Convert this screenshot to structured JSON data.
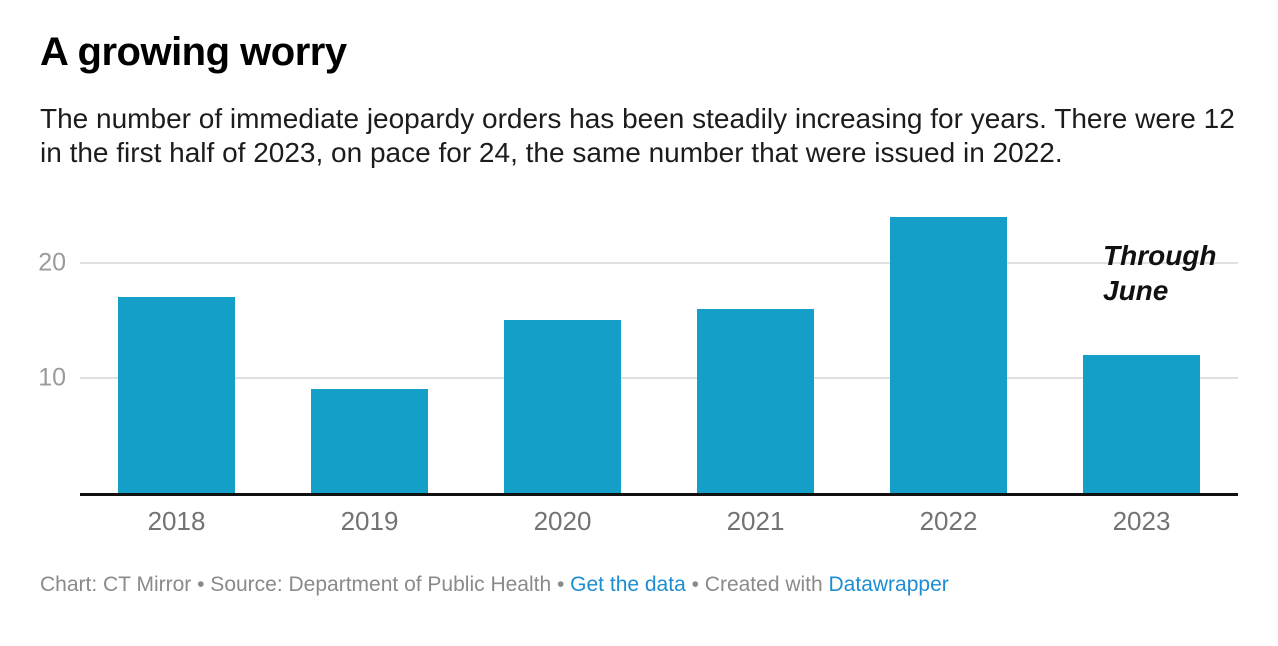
{
  "header": {
    "title": "A growing worry",
    "description_lines": [
      "The number of immediate jeopardy orders has been steadily increasing for years. There were 12",
      "in the first half of 2023, on pace for 24, the same number that were issued in 2022."
    ]
  },
  "chart_data": {
    "type": "bar",
    "categories": [
      "2018",
      "2019",
      "2020",
      "2021",
      "2022",
      "2023"
    ],
    "values": [
      17,
      9,
      15,
      16,
      24,
      12
    ],
    "title": "A growing worry",
    "xlabel": "",
    "ylabel": "",
    "ylim": [
      0,
      25
    ],
    "yticks": [
      10,
      20
    ],
    "grid": "horizontal",
    "legend": "none",
    "bar_color": "#149FC9",
    "axis_line_color": "#111111",
    "gridline_color": "#e0e0e0",
    "annotation": {
      "lines": [
        "Through",
        "June"
      ],
      "target_category": "2023"
    }
  },
  "footer": {
    "credit_prefix": "Chart: CT Mirror • Source: Department of Public Health • ",
    "get_data_label": "Get the data",
    "created_with": " • Created with ",
    "datawrapper_label": "Datawrapper",
    "link_color": "#1d8dd2"
  }
}
